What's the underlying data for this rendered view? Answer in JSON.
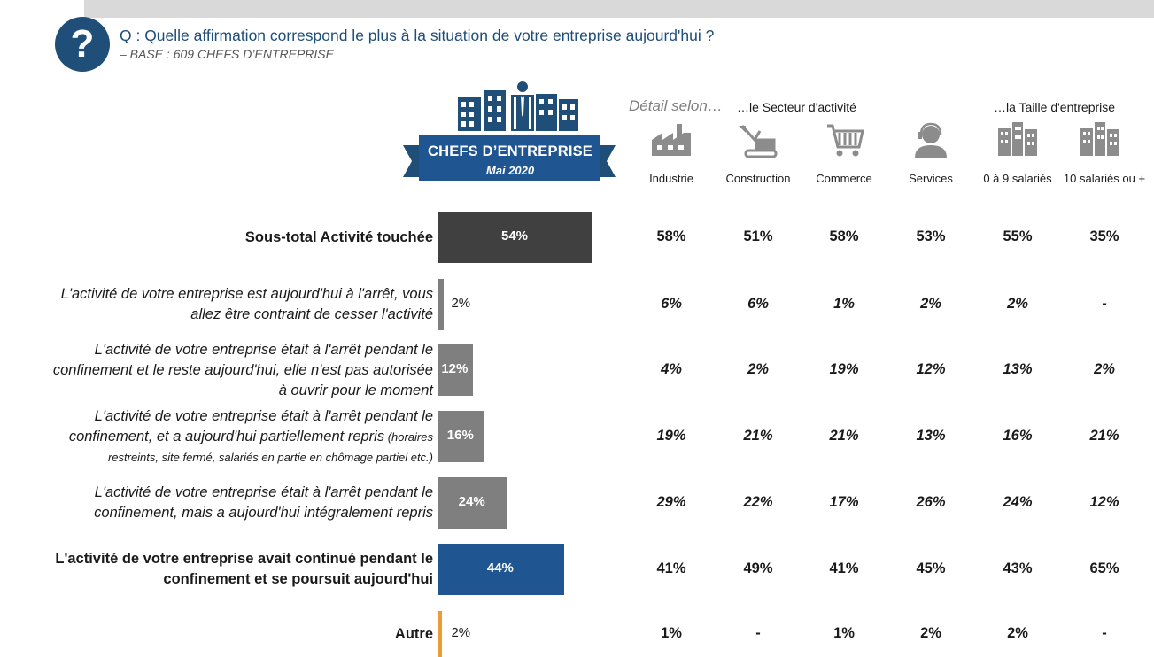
{
  "header": {
    "question": "Q : Quelle affirmation correspond le plus à la situation de votre entreprise aujourd'hui ?",
    "base": "– BASE : 609 CHEFS D’ENTREPRISE",
    "question_icon": "?"
  },
  "badge": {
    "title": "CHEFS D’ENTREPRISE",
    "subtitle": "Mai 2020",
    "icon": "business-building-icon"
  },
  "detail_label": "Détail selon…",
  "groups": [
    {
      "label": "…le Secteur d'activité"
    },
    {
      "label": "…la Taille d'entreprise"
    }
  ],
  "columns": [
    {
      "label": "Industrie",
      "icon": "factory-icon"
    },
    {
      "label": "Construction",
      "icon": "excavator-icon"
    },
    {
      "label": "Commerce",
      "icon": "shopping-cart-icon"
    },
    {
      "label": "Services",
      "icon": "headset-person-icon"
    },
    {
      "label": "0 à 9 salariés",
      "icon": "building-icon"
    },
    {
      "label": "10 salariés ou +",
      "icon": "building-icon"
    }
  ],
  "colors": {
    "dark": "#404040",
    "gray": "#7f7f7f",
    "blue": "#1f5591",
    "orange": "#ed9b33",
    "navy": "#1f4e79"
  },
  "chart_data": {
    "type": "bar",
    "title": "Q : Quelle affirmation correspond le plus à la situation de votre entreprise aujourd'hui ?",
    "orientation": "horizontal",
    "categories": [
      "Sous-total Activité touchée",
      "L'activité de votre entreprise est aujourd'hui à l'arrêt, vous allez être contraint de cesser l'activité",
      "L'activité de votre entreprise était à l'arrêt pendant le confinement et le reste aujourd'hui, elle n'est pas autorisée à ouvrir pour le moment",
      "L'activité de votre entreprise était à l'arrêt pendant le confinement, et a aujourd'hui partiellement repris (horaires restreints, site fermé, salariés en partie en chômage partiel etc.)",
      "L'activité de votre entreprise était à l'arrêt pendant le confinement, mais a aujourd'hui intégralement repris",
      "L'activité de votre entreprise avait continué pendant le confinement et se poursuit aujourd'hui",
      "Autre"
    ],
    "values": [
      54,
      2,
      12,
      16,
      24,
      44,
      2
    ],
    "value_labels": [
      "54%",
      "2%",
      "12%",
      "16%",
      "24%",
      "44%",
      "2%"
    ],
    "bar_colors": [
      "dark",
      "gray",
      "gray",
      "gray",
      "gray",
      "blue",
      "orange"
    ],
    "rows": [
      {
        "label": {
          "lines": [
            "Sous-total Activité touchée"
          ]
        },
        "style": "bold",
        "cells": [
          "58%",
          "51%",
          "58%",
          "53%",
          "55%",
          "35%"
        ]
      },
      {
        "label": {
          "lines": [
            "L'activité de votre entreprise est aujourd'hui à l'arrêt, vous",
            "allez être contraint de cesser l'activité"
          ]
        },
        "style": "italic",
        "cells": [
          "6%",
          "6%",
          "1%",
          "2%",
          "2%",
          "-"
        ]
      },
      {
        "label": {
          "lines": [
            "L'activité de votre entreprise était à l'arrêt pendant le",
            "confinement et le reste aujourd'hui, elle n'est pas autorisée",
            "à ouvrir pour le moment"
          ]
        },
        "style": "italic",
        "cells": [
          "4%",
          "2%",
          "19%",
          "12%",
          "13%",
          "2%"
        ]
      },
      {
        "label": {
          "lines": [
            "L'activité de votre entreprise était à l'arrêt pendant le",
            "confinement, et a aujourd'hui partiellement repris"
          ],
          "small_suffix": " (horaires",
          "small_line": "restreints, site fermé, salariés en partie en chômage partiel etc.)"
        },
        "style": "italic",
        "cells": [
          "19%",
          "21%",
          "21%",
          "13%",
          "16%",
          "21%"
        ]
      },
      {
        "label": {
          "lines": [
            "L'activité de votre entreprise était à l'arrêt pendant le",
            "confinement, mais a aujourd'hui intégralement repris"
          ]
        },
        "style": "italic",
        "cells": [
          "29%",
          "22%",
          "17%",
          "26%",
          "24%",
          "12%"
        ]
      },
      {
        "label": {
          "lines": [
            "L'activité de votre entreprise avait continué pendant le",
            "confinement et se poursuit aujourd'hui"
          ]
        },
        "style": "bold",
        "cells": [
          "41%",
          "49%",
          "41%",
          "45%",
          "43%",
          "65%"
        ]
      },
      {
        "label": {
          "lines": [
            "Autre"
          ]
        },
        "style": "bold",
        "cells": [
          "1%",
          "-",
          "1%",
          "2%",
          "2%",
          "-"
        ]
      }
    ]
  }
}
